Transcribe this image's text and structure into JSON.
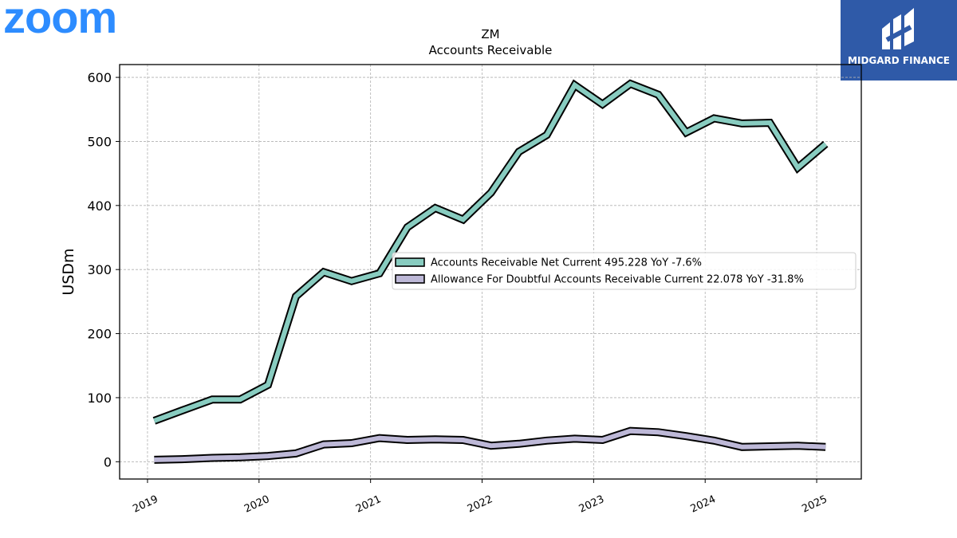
{
  "logo": {
    "text": "zoom",
    "color": "#2d8cff"
  },
  "brand": {
    "label": "MIDGARD FINANCE",
    "background": "#2f5aa8"
  },
  "chart_data": {
    "type": "line",
    "title": "ZM",
    "subtitle": "Accounts Receivable",
    "ylabel": "USDm",
    "xlabel": "",
    "xlim": [
      2018.75,
      2025.4
    ],
    "ylim": [
      -27,
      620
    ],
    "yticks": [
      0,
      100,
      200,
      300,
      400,
      500,
      600
    ],
    "xticks": [
      2019,
      2020,
      2021,
      2022,
      2023,
      2024,
      2025
    ],
    "grid": true,
    "legend_position": "center-right",
    "x": [
      2019.06,
      2019.31,
      2019.58,
      2019.83,
      2020.08,
      2020.33,
      2020.58,
      2020.83,
      2021.08,
      2021.33,
      2021.58,
      2021.83,
      2022.08,
      2022.33,
      2022.58,
      2022.83,
      2023.08,
      2023.33,
      2023.58,
      2023.83,
      2024.08,
      2024.33,
      2024.58,
      2024.83,
      2025.08
    ],
    "series": [
      {
        "name": "Accounts Receivable Net Current  495.228 YoY -7.6%",
        "color": "#88ccc0",
        "values": [
          64,
          80,
          97,
          97,
          120,
          258,
          296,
          282,
          294,
          366,
          396,
          378,
          420,
          484,
          510,
          588,
          558,
          590,
          573,
          514,
          536,
          528,
          529,
          459,
          496
        ]
      },
      {
        "name": "Allowance For Doubtful Accounts Receivable Current  22.078 YoY -31.8%",
        "color": "#bdb8d7",
        "values": [
          3,
          4,
          6,
          7,
          9,
          13,
          27,
          29,
          37,
          34,
          35,
          34,
          25,
          28,
          33,
          36,
          34,
          48,
          46,
          40,
          33,
          23,
          24,
          25,
          23
        ]
      }
    ]
  }
}
